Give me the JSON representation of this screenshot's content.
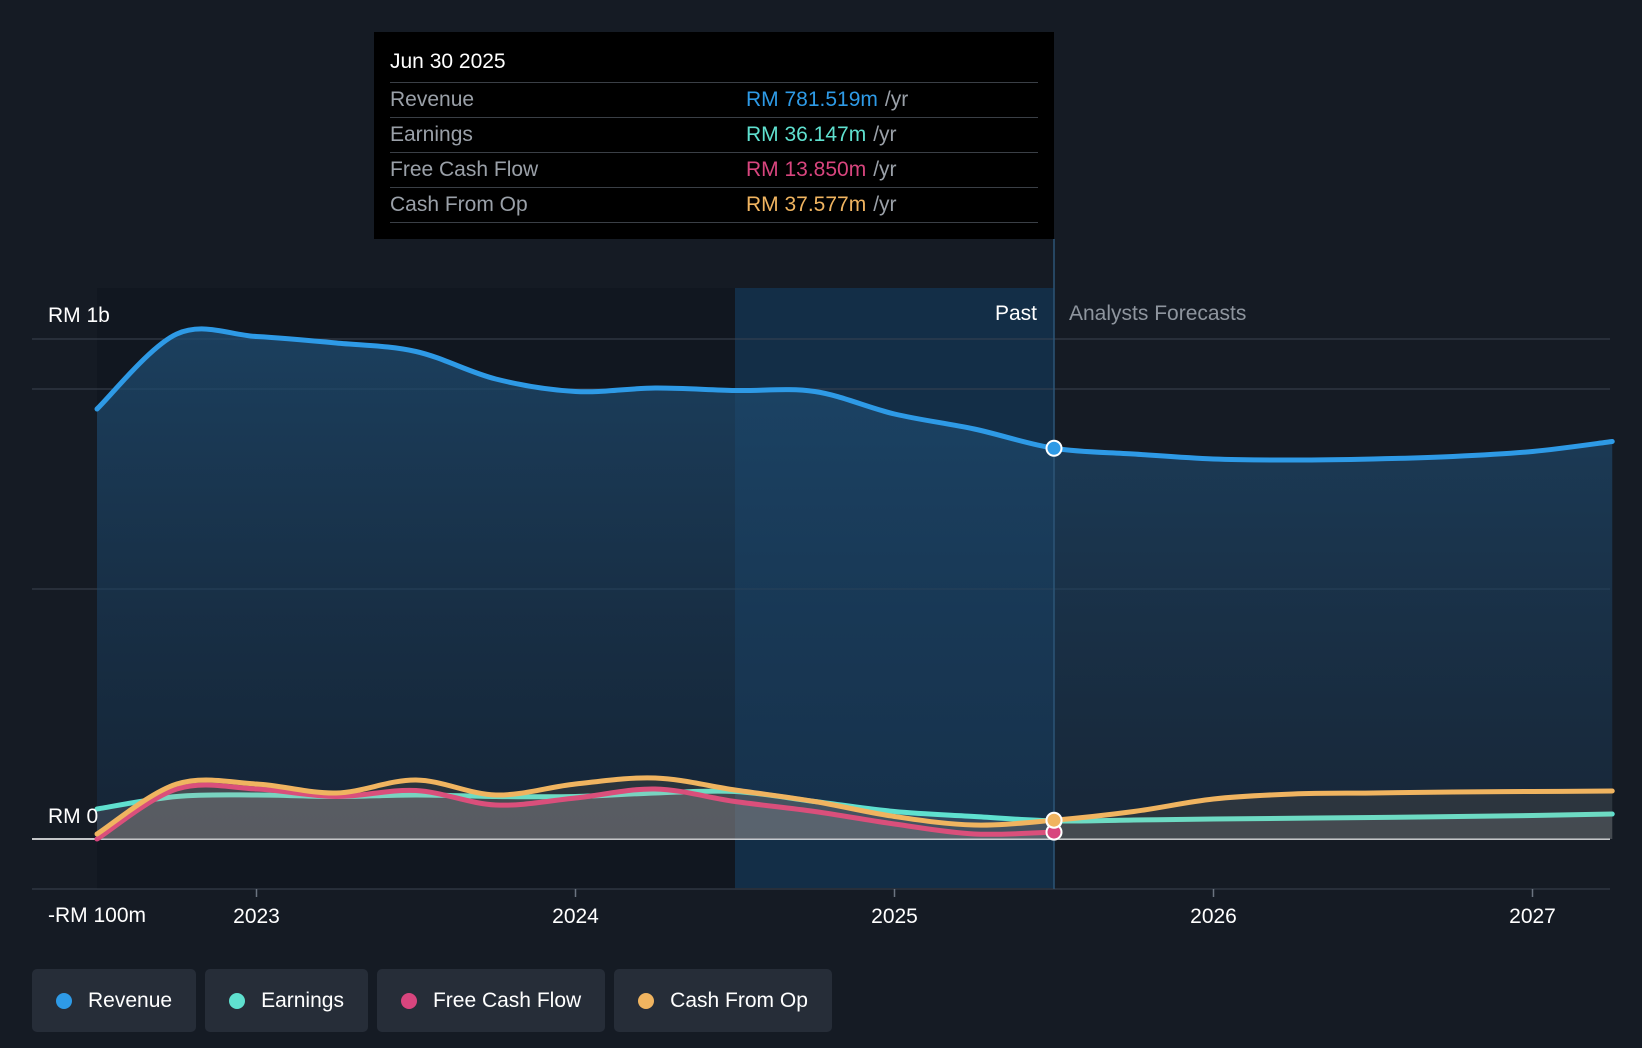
{
  "tooltip": {
    "date": "Jun 30 2025",
    "rows": [
      {
        "label": "Revenue",
        "value": "RM 781.519m",
        "unit": "/yr",
        "color": "#2e9ae6"
      },
      {
        "label": "Earnings",
        "value": "RM 36.147m",
        "unit": "/yr",
        "color": "#5fe0cf"
      },
      {
        "label": "Free Cash Flow",
        "value": "RM 13.850m",
        "unit": "/yr",
        "color": "#d8457e"
      },
      {
        "label": "Cash From Op",
        "value": "RM 37.577m",
        "unit": "/yr",
        "color": "#f0b460"
      }
    ]
  },
  "regions": {
    "past": "Past",
    "forecast": "Analysts Forecasts"
  },
  "legend": [
    {
      "label": "Revenue",
      "color": "#2e9ae6"
    },
    {
      "label": "Earnings",
      "color": "#5fe0cf"
    },
    {
      "label": "Free Cash Flow",
      "color": "#d8457e"
    },
    {
      "label": "Cash From Op",
      "color": "#f0b460"
    }
  ],
  "chart_data": {
    "type": "line",
    "title": "",
    "xlabel": "",
    "ylabel": "",
    "y_unit": "RM m",
    "ylim": [
      -100,
      1100
    ],
    "y_tick_labels": [
      {
        "value": 1000,
        "label": "RM 1b"
      },
      {
        "value": 0,
        "label": "RM 0"
      },
      {
        "value": -100,
        "label": "-RM 100m"
      }
    ],
    "x_range": [
      2022.5,
      2027.25
    ],
    "x_ticks": [
      2023,
      2024,
      2025,
      2026,
      2027
    ],
    "x_tick_labels": [
      "2023",
      "2024",
      "2025",
      "2026",
      "2027"
    ],
    "past_until": 2025.5,
    "highlight_start": 2024.5,
    "grid": true,
    "legend_position": "bottom-left",
    "series": [
      {
        "name": "Revenue",
        "color": "#2e9ae6",
        "points": [
          [
            2022.5,
            860
          ],
          [
            2022.75,
            1010
          ],
          [
            2023.0,
            1005
          ],
          [
            2023.25,
            992
          ],
          [
            2023.5,
            975
          ],
          [
            2023.75,
            920
          ],
          [
            2024.0,
            895
          ],
          [
            2024.25,
            902
          ],
          [
            2024.5,
            897
          ],
          [
            2024.75,
            895
          ],
          [
            2025.0,
            850
          ],
          [
            2025.25,
            820
          ],
          [
            2025.5,
            781.519
          ],
          [
            2025.75,
            770
          ],
          [
            2026.0,
            760
          ],
          [
            2026.25,
            758
          ],
          [
            2026.5,
            760
          ],
          [
            2026.75,
            765
          ],
          [
            2027.0,
            775
          ],
          [
            2027.25,
            795
          ]
        ]
      },
      {
        "name": "Earnings",
        "color": "#5fe0cf",
        "points": [
          [
            2022.5,
            60
          ],
          [
            2022.75,
            85
          ],
          [
            2023.0,
            88
          ],
          [
            2023.25,
            85
          ],
          [
            2023.5,
            88
          ],
          [
            2023.75,
            85
          ],
          [
            2024.0,
            85
          ],
          [
            2024.25,
            92
          ],
          [
            2024.5,
            95
          ],
          [
            2024.75,
            75
          ],
          [
            2025.0,
            55
          ],
          [
            2025.25,
            45
          ],
          [
            2025.5,
            36.147
          ],
          [
            2025.75,
            38
          ],
          [
            2026.0,
            40
          ],
          [
            2026.5,
            43
          ],
          [
            2027.0,
            47
          ],
          [
            2027.25,
            50
          ]
        ]
      },
      {
        "name": "Free Cash Flow",
        "color": "#d8457e",
        "points": [
          [
            2022.5,
            0
          ],
          [
            2022.75,
            100
          ],
          [
            2023.0,
            100
          ],
          [
            2023.25,
            85
          ],
          [
            2023.5,
            97
          ],
          [
            2023.75,
            68
          ],
          [
            2024.0,
            82
          ],
          [
            2024.25,
            100
          ],
          [
            2024.5,
            75
          ],
          [
            2024.75,
            55
          ],
          [
            2025.0,
            30
          ],
          [
            2025.25,
            10
          ],
          [
            2025.5,
            13.85
          ]
        ]
      },
      {
        "name": "Cash From Op",
        "color": "#f0b460",
        "points": [
          [
            2022.5,
            10
          ],
          [
            2022.75,
            110
          ],
          [
            2023.0,
            110
          ],
          [
            2023.25,
            92
          ],
          [
            2023.5,
            118
          ],
          [
            2023.75,
            88
          ],
          [
            2024.0,
            110
          ],
          [
            2024.25,
            122
          ],
          [
            2024.5,
            98
          ],
          [
            2024.75,
            75
          ],
          [
            2025.0,
            45
          ],
          [
            2025.25,
            28
          ],
          [
            2025.5,
            37.577
          ],
          [
            2025.75,
            55
          ],
          [
            2026.0,
            80
          ],
          [
            2026.25,
            90
          ],
          [
            2026.5,
            92
          ],
          [
            2026.75,
            94
          ],
          [
            2027.0,
            95
          ],
          [
            2027.25,
            96
          ]
        ]
      }
    ]
  }
}
